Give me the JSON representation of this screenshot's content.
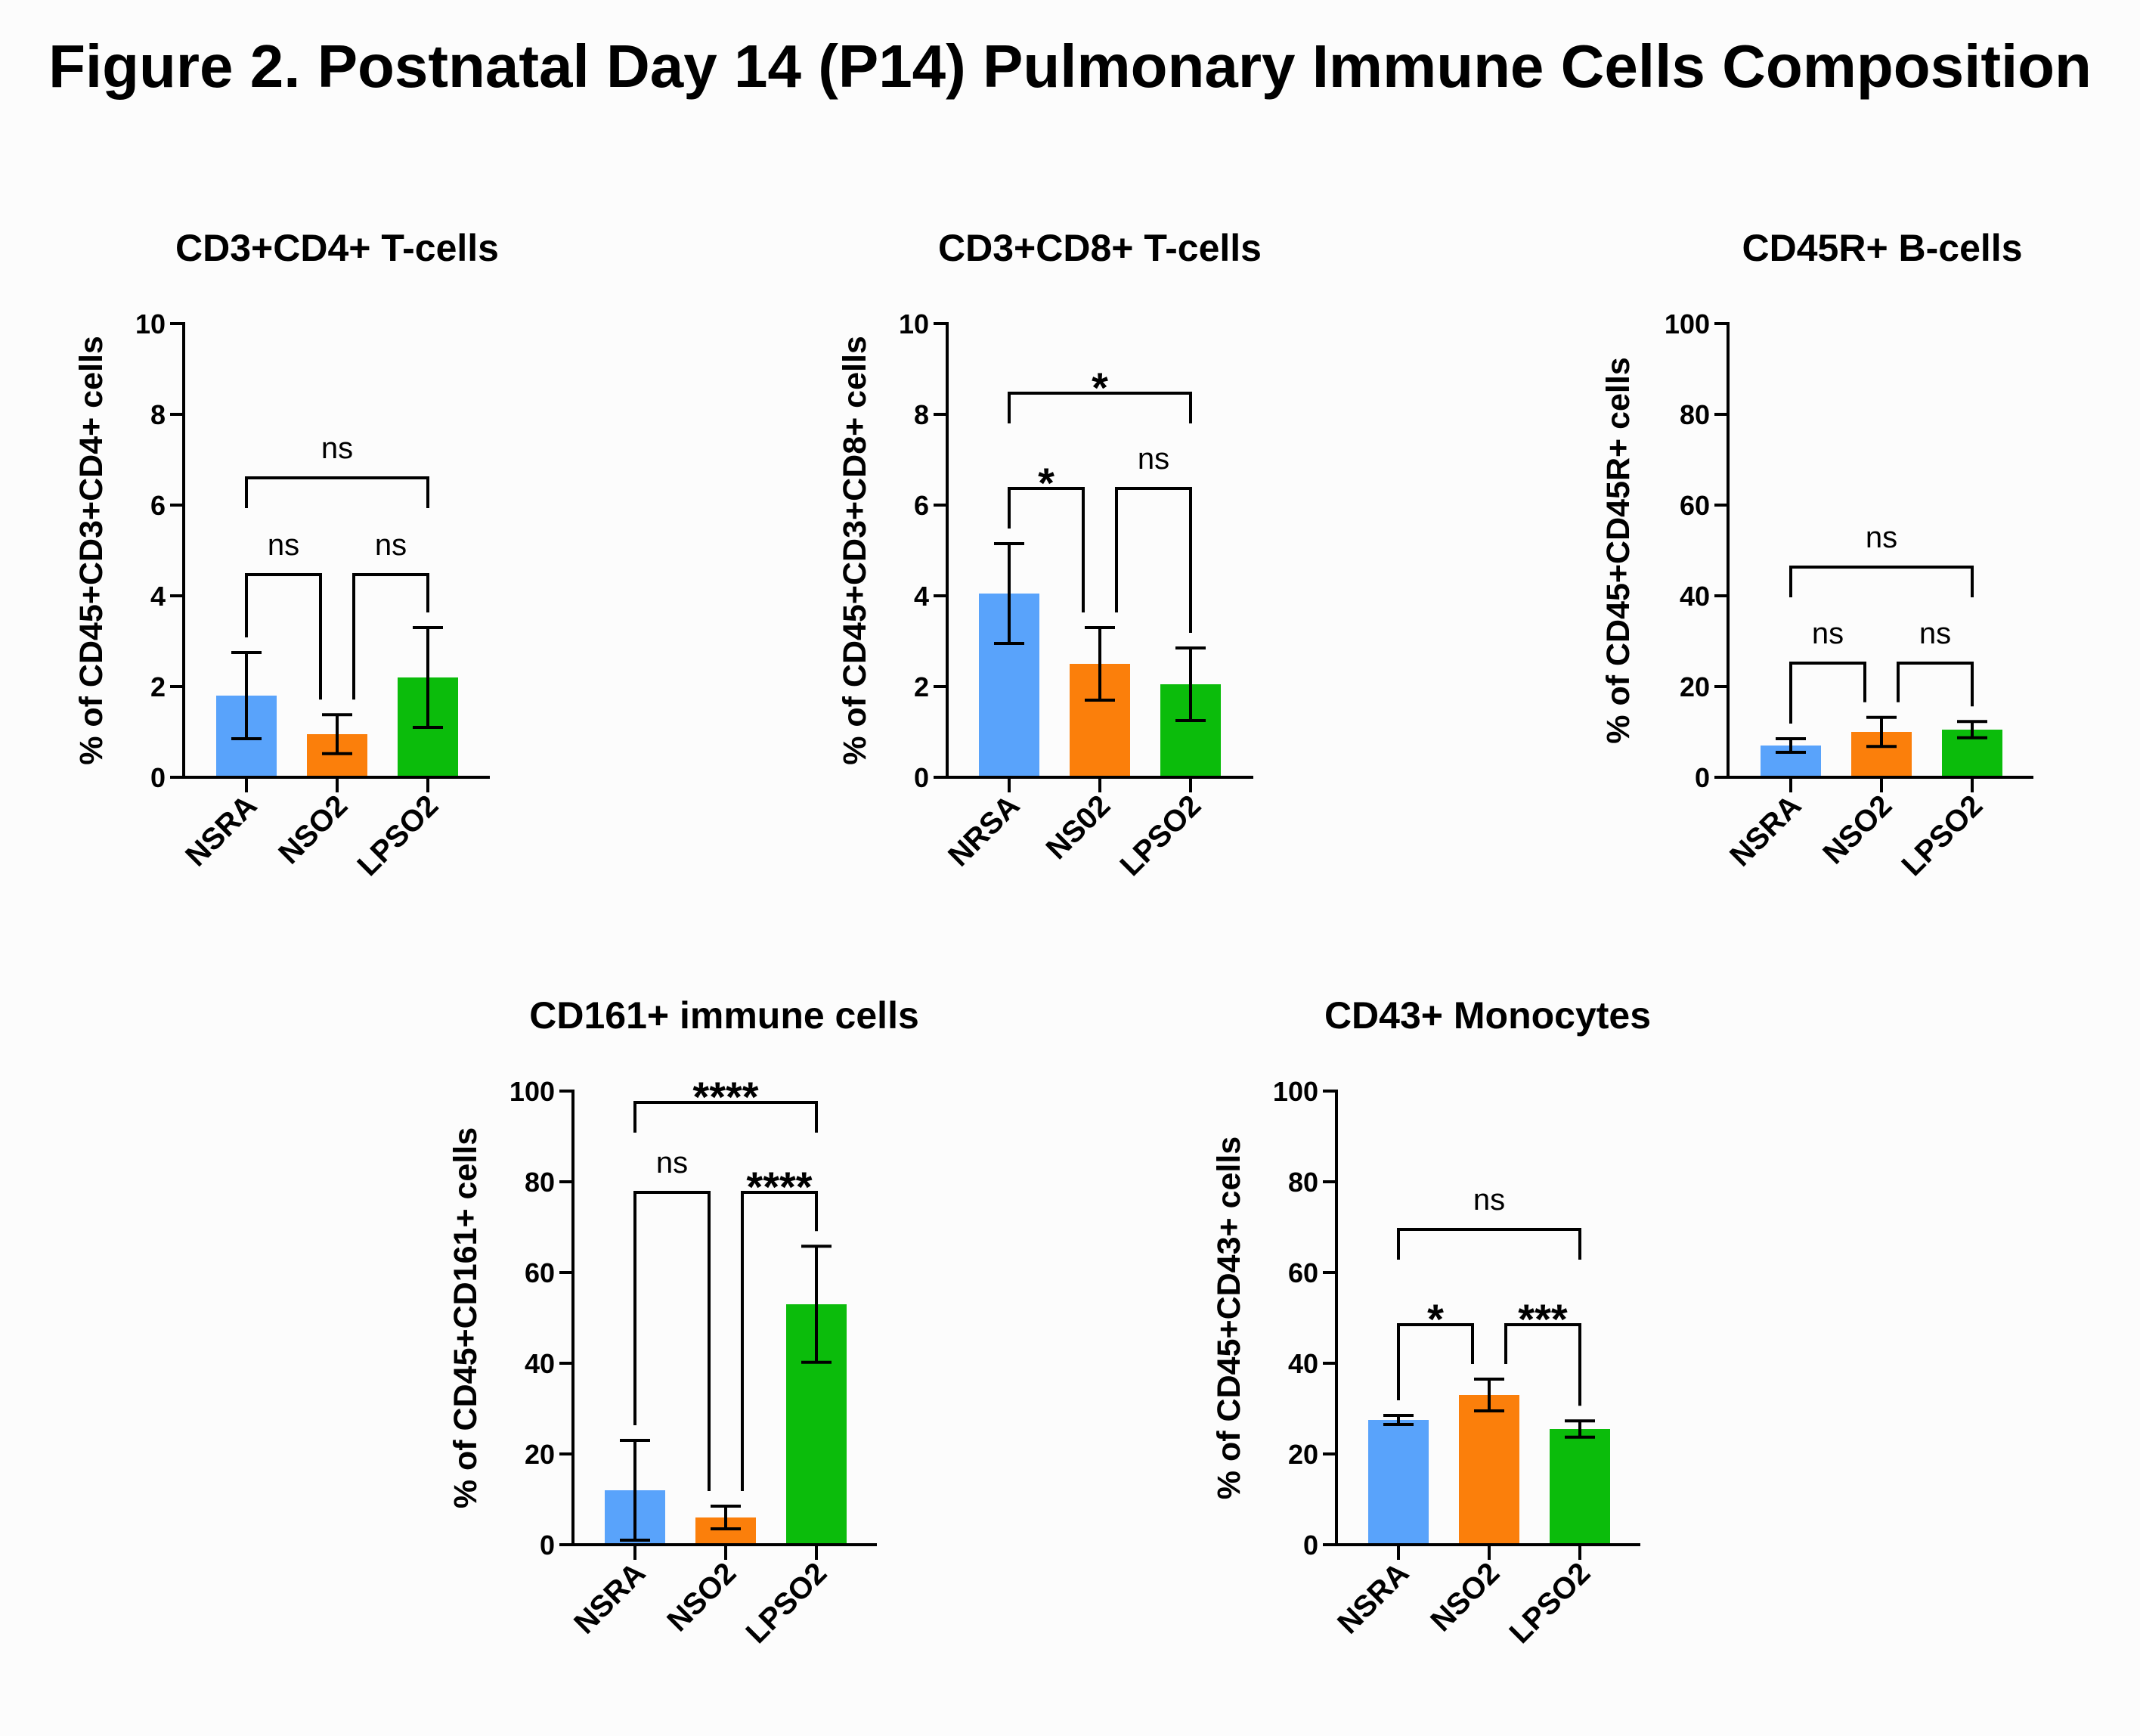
{
  "figure_title": "Figure 2. Postnatal Day 14 (P14) Pulmonary Immune Cells Composition",
  "colors": {
    "NSRA": "#59a3fb",
    "NSO2": "#fb7f0b",
    "LPSO2": "#0bbc0b",
    "axis": "#000000"
  },
  "chart_data": [
    {
      "type": "bar",
      "title": "CD3+CD4+ T-cells",
      "ylabel": "% of CD45+CD3+CD4+ cells",
      "xlabel": "",
      "categories": [
        "NSRA",
        "NSO2",
        "LPSO2"
      ],
      "values": [
        1.8,
        0.95,
        2.2
      ],
      "errors": [
        0.95,
        0.43,
        1.1
      ],
      "ylim": [
        0,
        10
      ],
      "yticks": [
        "0",
        "2",
        "4",
        "6",
        "8",
        "10"
      ],
      "grid": false,
      "comparisons": [
        {
          "groups": [
            "NSRA",
            "NSO2"
          ],
          "label": "ns"
        },
        {
          "groups": [
            "NSO2",
            "LPSO2"
          ],
          "label": "ns"
        },
        {
          "groups": [
            "NSRA",
            "LPSO2"
          ],
          "label": "ns"
        }
      ]
    },
    {
      "type": "bar",
      "title": "CD3+CD8+ T-cells",
      "ylabel": "% of CD45+CD3+CD8+ cells",
      "xlabel": "",
      "categories": [
        "NRSA",
        "NS02",
        "LPSO2"
      ],
      "values": [
        4.05,
        2.5,
        2.05
      ],
      "errors": [
        1.1,
        0.8,
        0.8
      ],
      "ylim": [
        0,
        10
      ],
      "yticks": [
        "0",
        "2",
        "4",
        "6",
        "8",
        "10"
      ],
      "grid": false,
      "comparisons": [
        {
          "groups": [
            "NRSA",
            "NS02"
          ],
          "label": "*"
        },
        {
          "groups": [
            "NS02",
            "LPSO2"
          ],
          "label": "ns"
        },
        {
          "groups": [
            "NRSA",
            "LPSO2"
          ],
          "label": "*"
        }
      ]
    },
    {
      "type": "bar",
      "title": "CD45R+ B-cells",
      "ylabel": "% of CD45+CD45R+ cells",
      "xlabel": "",
      "categories": [
        "NSRA",
        "NSO2",
        "LPSO2"
      ],
      "values": [
        7,
        10,
        10.5
      ],
      "errors": [
        1.5,
        3.2,
        1.8
      ],
      "ylim": [
        0,
        100
      ],
      "yticks": [
        "0",
        "20",
        "40",
        "60",
        "80",
        "100"
      ],
      "grid": false,
      "comparisons": [
        {
          "groups": [
            "NSRA",
            "NSO2"
          ],
          "label": "ns"
        },
        {
          "groups": [
            "NSO2",
            "LPSO2"
          ],
          "label": "ns"
        },
        {
          "groups": [
            "NSRA",
            "LPSO2"
          ],
          "label": "ns"
        }
      ]
    },
    {
      "type": "bar",
      "title": "CD161+ immune cells",
      "ylabel": "% of CD45+CD161+ cells",
      "xlabel": "",
      "categories": [
        "NSRA",
        "NSO2",
        "LPSO2"
      ],
      "values": [
        12,
        6,
        53
      ],
      "errors": [
        11,
        2.5,
        12.8
      ],
      "ylim": [
        0,
        100
      ],
      "yticks": [
        "0",
        "20",
        "40",
        "60",
        "80",
        "100"
      ],
      "grid": false,
      "comparisons": [
        {
          "groups": [
            "NSRA",
            "NSO2"
          ],
          "label": "ns"
        },
        {
          "groups": [
            "NSO2",
            "LPSO2"
          ],
          "label": "****"
        },
        {
          "groups": [
            "NSRA",
            "LPSO2"
          ],
          "label": "****"
        }
      ]
    },
    {
      "type": "bar",
      "title": "CD43+ Monocytes",
      "ylabel": "% of CD45+CD43+ cells",
      "xlabel": "",
      "categories": [
        "NSRA",
        "NSO2",
        "LPSO2"
      ],
      "values": [
        27.5,
        33,
        25.5
      ],
      "errors": [
        1,
        3.5,
        1.8
      ],
      "ylim": [
        0,
        100
      ],
      "yticks": [
        "0",
        "20",
        "40",
        "60",
        "80",
        "100"
      ],
      "grid": false,
      "comparisons": [
        {
          "groups": [
            "NSRA",
            "NSO2"
          ],
          "label": "*"
        },
        {
          "groups": [
            "NSO2",
            "LPSO2"
          ],
          "label": "***"
        },
        {
          "groups": [
            "NSRA",
            "LPSO2"
          ],
          "label": "ns"
        }
      ]
    }
  ]
}
